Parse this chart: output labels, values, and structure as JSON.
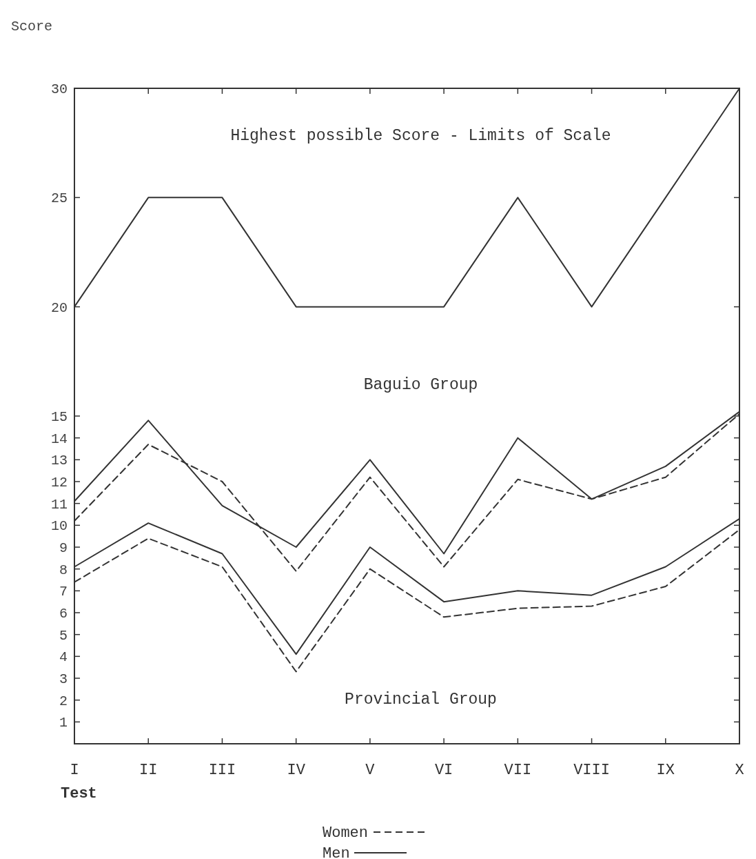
{
  "chart_data": {
    "type": "line",
    "ylabel": "Score",
    "xlabel": "Test",
    "categories": [
      "I",
      "II",
      "III",
      "IV",
      "V",
      "VI",
      "VII",
      "VIII",
      "IX",
      "X"
    ],
    "ylim": [
      0,
      30
    ],
    "yticks": [
      1,
      2,
      3,
      4,
      5,
      6,
      7,
      8,
      9,
      10,
      11,
      12,
      13,
      14,
      15,
      20,
      25,
      30
    ],
    "legend": "bottom",
    "series": [
      {
        "color": "#333333",
        "line_style": "solid",
        "values": [
          20,
          25,
          25,
          20,
          20,
          20,
          25,
          20,
          25,
          30
        ]
      },
      {
        "name": "Men",
        "color": "#333333",
        "line_style": "solid",
        "values": [
          11.1,
          14.8,
          10.9,
          9.0,
          13.0,
          8.7,
          14.0,
          11.2,
          12.7,
          15.2
        ]
      },
      {
        "name": "Women",
        "color": "#333333",
        "line_style": "dashed",
        "values": [
          10.2,
          13.7,
          12.0,
          7.9,
          12.2,
          8.1,
          12.1,
          11.2,
          12.2,
          15.1
        ]
      },
      {
        "color": "#333333",
        "line_style": "solid",
        "values": [
          8.1,
          10.1,
          8.7,
          4.1,
          9.0,
          6.5,
          7.0,
          6.8,
          8.1,
          10.3
        ]
      },
      {
        "color": "#333333",
        "line_style": "dashed",
        "values": [
          7.4,
          9.4,
          8.1,
          3.3,
          8.0,
          5.8,
          6.2,
          6.3,
          7.2,
          9.8
        ]
      }
    ],
    "annotations": [
      "Highest possible Score - Limits of Scale",
      "Baguio Group",
      "Provincial Group"
    ]
  }
}
